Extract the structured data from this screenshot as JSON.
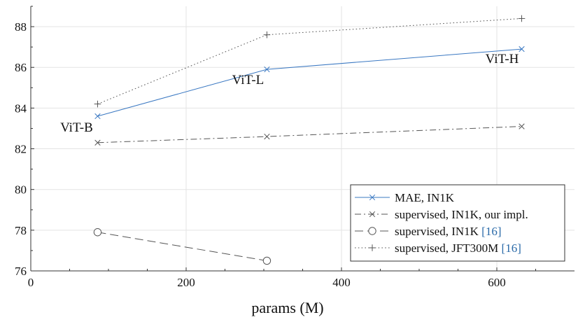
{
  "chart_data": {
    "type": "line",
    "title": "",
    "xlabel": "params (M)",
    "ylabel": "",
    "xlim": [
      0,
      700
    ],
    "ylim": [
      76,
      89
    ],
    "xticks": [
      0,
      200,
      400,
      600
    ],
    "yticks": [
      76,
      78,
      80,
      82,
      84,
      86,
      88
    ],
    "grid": true,
    "legend_position": "bottom-right",
    "series": [
      {
        "name": "MAE, IN1K",
        "legend_label": "MAE, IN1K",
        "legend_cite": "",
        "color": "#3a78c2",
        "linestyle": "solid",
        "marker": "x",
        "x": [
          86,
          304,
          632
        ],
        "y": [
          83.6,
          85.9,
          86.9
        ],
        "point_labels": [
          "ViT-B",
          "ViT-L",
          "ViT-H"
        ]
      },
      {
        "name": "supervised, IN1K, our impl.",
        "legend_label": "supervised, IN1K, our impl.",
        "legend_cite": "",
        "color": "#555555",
        "linestyle": "dashdot",
        "marker": "x",
        "x": [
          86,
          304,
          632
        ],
        "y": [
          82.3,
          82.6,
          83.1
        ]
      },
      {
        "name": "supervised, IN1K [16]",
        "legend_label": "supervised, IN1K ",
        "legend_cite": "[16]",
        "color": "#555555",
        "linestyle": "dashed",
        "marker": "o",
        "x": [
          86,
          304
        ],
        "y": [
          77.9,
          76.5
        ]
      },
      {
        "name": "supervised, JFT300M [16]",
        "legend_label": "supervised, JFT300M ",
        "legend_cite": "[16]",
        "color": "#555555",
        "linestyle": "dotted",
        "marker": "+",
        "x": [
          86,
          304,
          632
        ],
        "y": [
          84.2,
          87.6,
          88.4
        ]
      }
    ]
  }
}
